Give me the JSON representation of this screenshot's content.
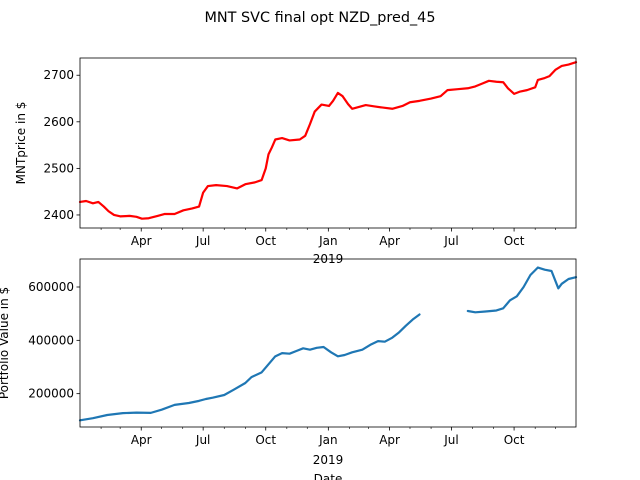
{
  "figure": {
    "suptitle": "MNT SVC final opt NZD_pred_45"
  },
  "chart_data": [
    {
      "type": "line",
      "ylabel": "MNTprice in $",
      "xlabel": "",
      "x_tick_labels": [
        "Apr",
        "Jul",
        "Oct",
        "Jan",
        "Apr",
        "Jul",
        "Oct"
      ],
      "x_year_label": "2019",
      "xlim": [
        "2018-01-01",
        "2019-12-31"
      ],
      "ylim": [
        2372,
        2737
      ],
      "y_ticks": [
        2400,
        2500,
        2600,
        2700
      ],
      "grid": false,
      "series": [
        {
          "color": "#ff0000",
          "points": [
            [
              "2018-01-01",
              2428
            ],
            [
              "2018-01-10",
              2430
            ],
            [
              "2018-01-20",
              2425
            ],
            [
              "2018-01-28",
              2428
            ],
            [
              "2018-02-05",
              2418
            ],
            [
              "2018-02-12",
              2408
            ],
            [
              "2018-02-20",
              2400
            ],
            [
              "2018-03-01",
              2397
            ],
            [
              "2018-03-15",
              2398
            ],
            [
              "2018-03-25",
              2396
            ],
            [
              "2018-04-02",
              2392
            ],
            [
              "2018-04-12",
              2393
            ],
            [
              "2018-04-25",
              2398
            ],
            [
              "2018-05-05",
              2402
            ],
            [
              "2018-05-20",
              2402
            ],
            [
              "2018-06-02",
              2410
            ],
            [
              "2018-06-15",
              2414
            ],
            [
              "2018-06-25",
              2418
            ],
            [
              "2018-07-01",
              2448
            ],
            [
              "2018-07-08",
              2462
            ],
            [
              "2018-07-20",
              2464
            ],
            [
              "2018-08-05",
              2462
            ],
            [
              "2018-08-20",
              2457
            ],
            [
              "2018-09-01",
              2466
            ],
            [
              "2018-09-15",
              2470
            ],
            [
              "2018-09-25",
              2475
            ],
            [
              "2018-10-01",
              2500
            ],
            [
              "2018-10-05",
              2530
            ],
            [
              "2018-10-10",
              2545
            ],
            [
              "2018-10-15",
              2562
            ],
            [
              "2018-10-25",
              2565
            ],
            [
              "2018-11-05",
              2560
            ],
            [
              "2018-11-20",
              2562
            ],
            [
              "2018-11-28",
              2570
            ],
            [
              "2018-12-05",
              2595
            ],
            [
              "2018-12-12",
              2622
            ],
            [
              "2018-12-22",
              2637
            ],
            [
              "2019-01-02",
              2634
            ],
            [
              "2019-01-08",
              2645
            ],
            [
              "2019-01-15",
              2662
            ],
            [
              "2019-01-22",
              2655
            ],
            [
              "2019-01-30",
              2638
            ],
            [
              "2019-02-05",
              2628
            ],
            [
              "2019-02-15",
              2632
            ],
            [
              "2019-02-25",
              2636
            ],
            [
              "2019-03-10",
              2633
            ],
            [
              "2019-03-25",
              2630
            ],
            [
              "2019-04-05",
              2628
            ],
            [
              "2019-04-20",
              2634
            ],
            [
              "2019-05-01",
              2642
            ],
            [
              "2019-05-15",
              2645
            ],
            [
              "2019-06-01",
              2650
            ],
            [
              "2019-06-15",
              2655
            ],
            [
              "2019-06-25",
              2668
            ],
            [
              "2019-07-10",
              2670
            ],
            [
              "2019-07-25",
              2672
            ],
            [
              "2019-08-05",
              2676
            ],
            [
              "2019-08-15",
              2682
            ],
            [
              "2019-08-25",
              2688
            ],
            [
              "2019-09-05",
              2686
            ],
            [
              "2019-09-15",
              2685
            ],
            [
              "2019-09-22",
              2672
            ],
            [
              "2019-10-01",
              2660
            ],
            [
              "2019-10-10",
              2665
            ],
            [
              "2019-10-20",
              2668
            ],
            [
              "2019-11-01",
              2674
            ],
            [
              "2019-11-05",
              2690
            ],
            [
              "2019-11-15",
              2694
            ],
            [
              "2019-11-22",
              2698
            ],
            [
              "2019-12-01",
              2712
            ],
            [
              "2019-12-10",
              2720
            ],
            [
              "2019-12-20",
              2723
            ],
            [
              "2019-12-31",
              2728
            ]
          ]
        }
      ]
    },
    {
      "type": "line",
      "ylabel": "Portfolio Value in $",
      "xlabel": "Date",
      "x_tick_labels": [
        "Apr",
        "Jul",
        "Oct",
        "Jan",
        "Apr",
        "Jul",
        "Oct"
      ],
      "x_year_label": "2019",
      "xlim": [
        "2018-01-01",
        "2019-12-31"
      ],
      "ylim": [
        75000,
        705000
      ],
      "y_ticks": [
        200000,
        400000,
        600000
      ],
      "grid": false,
      "series": [
        {
          "color": "#1f77b4",
          "segments": [
            [
              [
                "2018-01-01",
                100000
              ],
              [
                "2018-01-20",
                108000
              ],
              [
                "2018-02-10",
                120000
              ],
              [
                "2018-03-05",
                127000
              ],
              [
                "2018-03-25",
                129000
              ],
              [
                "2018-04-15",
                128000
              ],
              [
                "2018-05-01",
                140000
              ],
              [
                "2018-05-20",
                158000
              ],
              [
                "2018-06-10",
                165000
              ],
              [
                "2018-06-25",
                173000
              ],
              [
                "2018-07-05",
                180000
              ],
              [
                "2018-07-15",
                185000
              ],
              [
                "2018-08-01",
                195000
              ],
              [
                "2018-08-15",
                215000
              ],
              [
                "2018-09-01",
                240000
              ],
              [
                "2018-09-10",
                262000
              ],
              [
                "2018-09-25",
                280000
              ],
              [
                "2018-10-05",
                310000
              ],
              [
                "2018-10-15",
                340000
              ],
              [
                "2018-10-25",
                352000
              ],
              [
                "2018-11-05",
                350000
              ],
              [
                "2018-11-15",
                360000
              ],
              [
                "2018-11-25",
                370000
              ],
              [
                "2018-12-05",
                365000
              ],
              [
                "2018-12-15",
                372000
              ],
              [
                "2018-12-25",
                375000
              ],
              [
                "2019-01-05",
                355000
              ],
              [
                "2019-01-15",
                340000
              ],
              [
                "2019-01-25",
                345000
              ],
              [
                "2019-02-05",
                355000
              ],
              [
                "2019-02-20",
                365000
              ],
              [
                "2019-03-05",
                385000
              ],
              [
                "2019-03-15",
                397000
              ],
              [
                "2019-03-25",
                395000
              ],
              [
                "2019-04-05",
                410000
              ],
              [
                "2019-04-15",
                430000
              ],
              [
                "2019-04-25",
                455000
              ],
              [
                "2019-05-05",
                478000
              ],
              [
                "2019-05-15",
                497000
              ]
            ],
            [
              [
                "2019-07-25",
                510000
              ],
              [
                "2019-08-05",
                505000
              ],
              [
                "2019-08-20",
                508000
              ],
              [
                "2019-09-05",
                512000
              ],
              [
                "2019-09-15",
                520000
              ],
              [
                "2019-09-25",
                550000
              ],
              [
                "2019-10-05",
                565000
              ],
              [
                "2019-10-15",
                600000
              ],
              [
                "2019-10-25",
                645000
              ],
              [
                "2019-11-05",
                673000
              ],
              [
                "2019-11-15",
                665000
              ],
              [
                "2019-11-25",
                660000
              ],
              [
                "2019-12-05",
                595000
              ],
              [
                "2019-12-10",
                612000
              ],
              [
                "2019-12-20",
                630000
              ],
              [
                "2019-12-31",
                637000
              ]
            ]
          ]
        }
      ]
    }
  ]
}
